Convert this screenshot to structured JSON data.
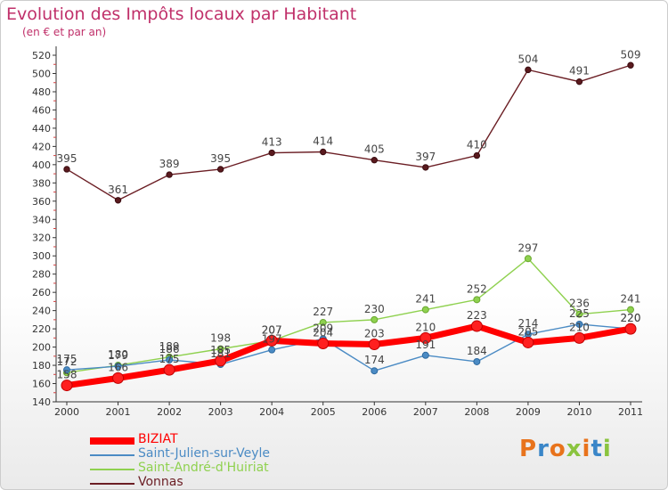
{
  "title": "Evolution des Impôts locaux par Habitant",
  "subtitle": "(en € et par an)",
  "logo": "Proxiti",
  "chart_data": {
    "type": "line",
    "title": "Evolution des Impôts locaux par Habitant",
    "subtitle": "(en € et par an)",
    "xlabel": "",
    "ylabel": "",
    "x": [
      "2000",
      "2001",
      "2002",
      "2003",
      "2004",
      "2005",
      "2006",
      "2007",
      "2008",
      "2009",
      "2010",
      "2011"
    ],
    "ylim": [
      140,
      520
    ],
    "yticks": [
      140,
      160,
      180,
      200,
      220,
      240,
      260,
      280,
      300,
      320,
      340,
      360,
      380,
      400,
      420,
      440,
      460,
      480,
      500,
      520
    ],
    "grid": false,
    "legend_position": "bottom-left",
    "series": [
      {
        "name": "Vonnas",
        "color": "#6b1e24",
        "values": [
          395,
          361,
          389,
          395,
          413,
          414,
          405,
          397,
          410,
          504,
          491,
          509
        ]
      },
      {
        "name": "Saint-André-d'Huiriat",
        "color": "#8fd14f",
        "values": [
          172,
          180,
          189,
          198,
          207,
          227,
          230,
          241,
          252,
          297,
          236,
          241
        ]
      },
      {
        "name": "Saint-Julien-sur-Veyle",
        "color": "#4b8bc4",
        "values": [
          175,
          179,
          186,
          181,
          197,
          209,
          174,
          191,
          184,
          214,
          225,
          220
        ]
      },
      {
        "name": "BIZIAT",
        "color": "#ff0000",
        "values": [
          158,
          166,
          175,
          185,
          207,
          204,
          203,
          210,
          223,
          205,
          210,
          220
        ]
      }
    ],
    "data_labels": {
      "Vonnas": [
        "395",
        "361",
        "389",
        "395",
        "413",
        "414",
        "405",
        "397",
        "410",
        "504",
        "491",
        "509"
      ],
      "Saint-André-d'Huiriat": [
        "172",
        "180",
        "189",
        "198",
        "207",
        "227",
        "230",
        "241",
        "252",
        "297",
        "236",
        "241"
      ],
      "Saint-Julien-sur-Veyle": [
        "175",
        "179",
        "186",
        "181",
        "197",
        "209",
        "174",
        "191",
        "184",
        "214",
        "225",
        "220"
      ],
      "BIZIAT": [
        "158",
        "166",
        "175",
        "185",
        "207",
        "204",
        "203",
        "210",
        "223",
        "205",
        "210",
        "220"
      ]
    }
  },
  "legend": [
    {
      "name": "BIZIAT",
      "color": "#ff0000"
    },
    {
      "name": "Saint-Julien-sur-Veyle",
      "color": "#4b8bc4"
    },
    {
      "name": "Saint-André-d'Huiriat",
      "color": "#8fd14f"
    },
    {
      "name": "Vonnas",
      "color": "#6b1e24"
    }
  ],
  "logo_colors": [
    "#e8731c",
    "#3a86c8",
    "#e8731c",
    "#8ac43f",
    "#e8731c",
    "#3a86c8",
    "#8ac43f"
  ]
}
